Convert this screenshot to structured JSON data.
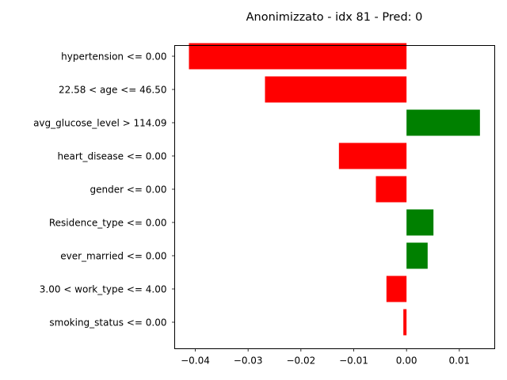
{
  "chart_data": {
    "type": "bar",
    "orientation": "horizontal",
    "title": "Anonimizzato - idx 81 - Pred: 0",
    "xlabel": "",
    "ylabel": "",
    "categories": [
      "hypertension <= 0.00",
      "22.58 < age <= 46.50",
      "avg_glucose_level > 114.09",
      "heart_disease <= 0.00",
      "gender <= 0.00",
      "Residence_type <= 0.00",
      "ever_married <= 0.00",
      "3.00 < work_type <= 4.00",
      "smoking_status <= 0.00"
    ],
    "values": [
      -0.0412,
      -0.0268,
      0.0139,
      -0.0128,
      -0.0058,
      0.0051,
      0.004,
      -0.0038,
      -0.0006
    ],
    "xticks": [
      "−0.04",
      "−0.03",
      "−0.02",
      "−0.01",
      "0.00",
      "0.01"
    ],
    "xtick_values": [
      -0.04,
      -0.03,
      -0.02,
      -0.01,
      0.0,
      0.01
    ],
    "xlim": [
      -0.0439,
      0.0167
    ],
    "grid": false,
    "colors": {
      "positive": "#008000",
      "negative": "#ff0000"
    }
  }
}
